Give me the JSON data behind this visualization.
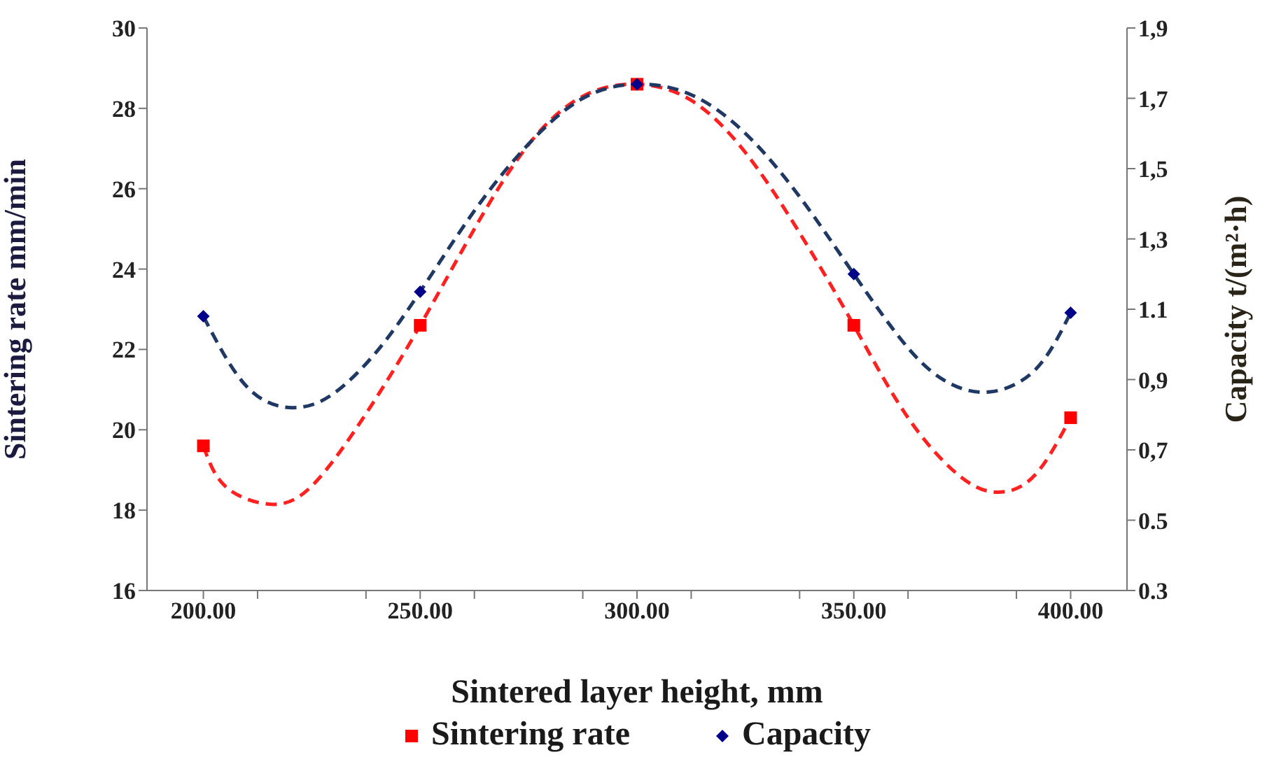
{
  "chart_data": {
    "type": "scatter",
    "xlabel": "Sintered layer height, mm",
    "ylabel": "Sintering rate mm/min",
    "y2label": "Capacity t/(m²·h)",
    "xlim": [
      187,
      413
    ],
    "xticks": [
      {
        "value": 200,
        "label": "200.00"
      },
      {
        "value": 212.5,
        "label": null
      },
      {
        "value": 237.5,
        "label": null
      },
      {
        "value": 250,
        "label": "250.00"
      },
      {
        "value": 262.5,
        "label": null
      },
      {
        "value": 287.5,
        "label": null
      },
      {
        "value": 300,
        "label": "300.00"
      },
      {
        "value": 312.5,
        "label": null
      },
      {
        "value": 337.5,
        "label": null
      },
      {
        "value": 350,
        "label": "350.00"
      },
      {
        "value": 362.5,
        "label": null
      },
      {
        "value": 387.5,
        "label": null
      },
      {
        "value": 400,
        "label": "400.00"
      }
    ],
    "ylim": [
      16,
      30
    ],
    "yticks": [
      16,
      18,
      20,
      22,
      24,
      26,
      28,
      30
    ],
    "y2lim": [
      0.3,
      1.9
    ],
    "y2ticks": [
      0.3,
      0.5,
      {
        "value": 0.7,
        "label": "0,7"
      },
      {
        "value": 0.9,
        "label": "0,9"
      },
      1.1,
      {
        "value": 1.3,
        "label": "1,3"
      },
      {
        "value": 1.5,
        "label": "1,5"
      },
      {
        "value": 1.7,
        "label": "1,7"
      },
      {
        "value": 1.9,
        "label": "1,9"
      }
    ],
    "grid": false,
    "legend": "bottom",
    "series": [
      {
        "type": "line",
        "color": "#ff2020",
        "line_style": "dashed",
        "marker": "none",
        "x": [
          200,
          205,
          215,
          225,
          237.5,
          250,
          262.5,
          275,
          287.5,
          300,
          312.5,
          325,
          337.5,
          350,
          362.5,
          375,
          384,
          392,
          400
        ],
        "values": [
          19.6,
          18.6,
          18.15,
          18.6,
          20.4,
          22.6,
          25.0,
          27.1,
          28.3,
          28.6,
          28.2,
          26.9,
          24.9,
          22.6,
          20.3,
          18.8,
          18.45,
          18.9,
          20.3
        ]
      },
      {
        "type": "line",
        "axis": "y2",
        "color": "#1f3864",
        "line_style": "dashed",
        "marker": "none",
        "x": [
          200,
          210,
          220.5,
          230,
          240,
          250,
          262.5,
          275,
          287.5,
          300,
          312.5,
          325,
          337.5,
          350,
          362.5,
          372,
          381.5,
          392,
          400
        ],
        "values": [
          1.08,
          0.88,
          0.82,
          0.86,
          0.98,
          1.15,
          1.38,
          1.57,
          1.7,
          1.74,
          1.71,
          1.6,
          1.42,
          1.2,
          0.99,
          0.89,
          0.865,
          0.93,
          1.09
        ]
      },
      {
        "name": "Sintering rate",
        "color": "#ff0000",
        "marker": "square",
        "x": [
          200,
          250,
          300,
          350,
          400
        ],
        "values": [
          19.6,
          22.6,
          28.6,
          22.6,
          20.3
        ]
      },
      {
        "name": "Capacity",
        "axis": "y2",
        "color": "#00008b",
        "marker": "diamond",
        "x": [
          200,
          250,
          300,
          350,
          400
        ],
        "values": [
          1.08,
          1.15,
          1.74,
          1.2,
          1.09
        ]
      }
    ]
  }
}
